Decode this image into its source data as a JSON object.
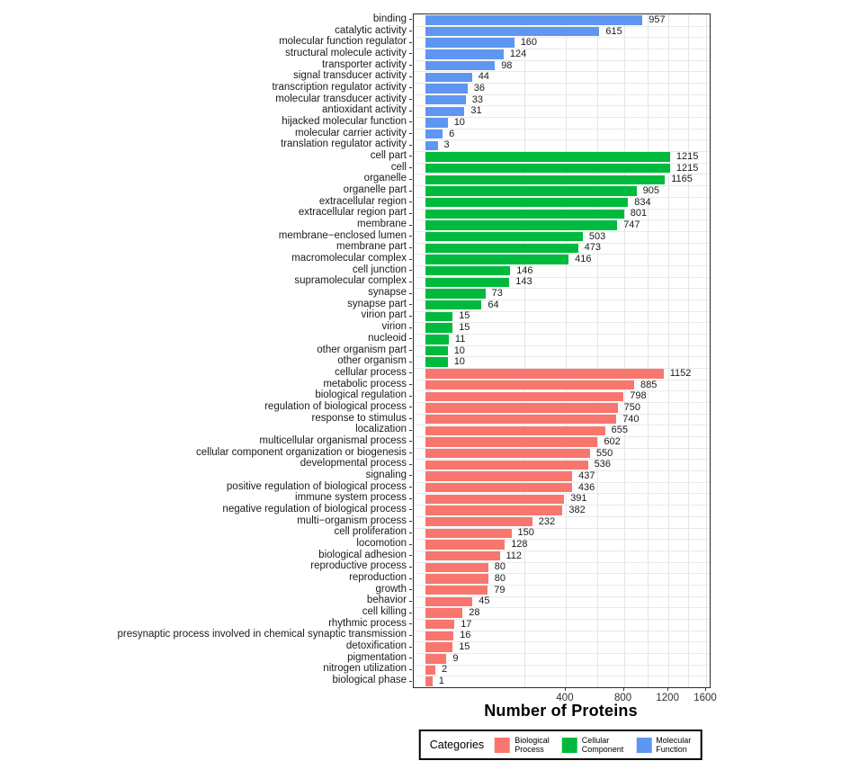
{
  "chart_data": {
    "type": "bar",
    "orientation": "horizontal",
    "x_scale": "sqrt",
    "xlabel": "Number of Proteins",
    "ylabel": "",
    "x_ticks": [
      400,
      800,
      1200,
      1600
    ],
    "gridline_step": 200,
    "xlim": [
      0,
      1600
    ],
    "grid": "on",
    "legend_position": "bottom",
    "sections": [
      {
        "name": "Molecular Function",
        "color": "#5e96f2",
        "items": [
          {
            "label": "binding",
            "value": 957
          },
          {
            "label": "catalytic activity",
            "value": 615
          },
          {
            "label": "molecular function regulator",
            "value": 160
          },
          {
            "label": "structural molecule activity",
            "value": 124
          },
          {
            "label": "transporter activity",
            "value": 98
          },
          {
            "label": "signal transducer activity",
            "value": 44
          },
          {
            "label": "transcription regulator activity",
            "value": 36
          },
          {
            "label": "molecular transducer activity",
            "value": 33
          },
          {
            "label": "antioxidant activity",
            "value": 31
          },
          {
            "label": "hijacked molecular function",
            "value": 10
          },
          {
            "label": "molecular carrier activity",
            "value": 6
          },
          {
            "label": "translation regulator activity",
            "value": 3
          }
        ]
      },
      {
        "name": "Cellular Component",
        "color": "#00ba3d",
        "items": [
          {
            "label": "cell part",
            "value": 1215
          },
          {
            "label": "cell",
            "value": 1215
          },
          {
            "label": "organelle",
            "value": 1165
          },
          {
            "label": "organelle part",
            "value": 905
          },
          {
            "label": "extracellular region",
            "value": 834
          },
          {
            "label": "extracellular region part",
            "value": 801
          },
          {
            "label": "membrane",
            "value": 747
          },
          {
            "label": "membrane−enclosed lumen",
            "value": 503
          },
          {
            "label": "membrane part",
            "value": 473
          },
          {
            "label": "macromolecular complex",
            "value": 416
          },
          {
            "label": "cell junction",
            "value": 146
          },
          {
            "label": "supramolecular complex",
            "value": 143
          },
          {
            "label": "synapse",
            "value": 73
          },
          {
            "label": "synapse part",
            "value": 64
          },
          {
            "label": "virion part",
            "value": 15
          },
          {
            "label": "virion",
            "value": 15
          },
          {
            "label": "nucleoid",
            "value": 11
          },
          {
            "label": "other organism part",
            "value": 10
          },
          {
            "label": "other organism",
            "value": 10
          }
        ]
      },
      {
        "name": "Biological Process",
        "color": "#f8766d",
        "items": [
          {
            "label": "cellular process",
            "value": 1152
          },
          {
            "label": "metabolic process",
            "value": 885
          },
          {
            "label": "biological regulation",
            "value": 798
          },
          {
            "label": "regulation of biological process",
            "value": 750
          },
          {
            "label": "response to stimulus",
            "value": 740
          },
          {
            "label": "localization",
            "value": 655
          },
          {
            "label": "multicellular organismal process",
            "value": 602
          },
          {
            "label": "cellular component organization or biogenesis",
            "value": 550
          },
          {
            "label": "developmental process",
            "value": 536
          },
          {
            "label": "signaling",
            "value": 437
          },
          {
            "label": "positive regulation of biological process",
            "value": 436
          },
          {
            "label": "immune system process",
            "value": 391
          },
          {
            "label": "negative regulation of biological process",
            "value": 382
          },
          {
            "label": "multi−organism process",
            "value": 232
          },
          {
            "label": "cell proliferation",
            "value": 150
          },
          {
            "label": "locomotion",
            "value": 128
          },
          {
            "label": "biological adhesion",
            "value": 112
          },
          {
            "label": "reproductive process",
            "value": 80
          },
          {
            "label": "reproduction",
            "value": 80
          },
          {
            "label": "growth",
            "value": 79
          },
          {
            "label": "behavior",
            "value": 45
          },
          {
            "label": "cell killing",
            "value": 28
          },
          {
            "label": "rhythmic process",
            "value": 17
          },
          {
            "label": "presynaptic process involved in chemical synaptic transmission",
            "value": 16
          },
          {
            "label": "detoxification",
            "value": 15
          },
          {
            "label": "pigmentation",
            "value": 9
          },
          {
            "label": "nitrogen utilization",
            "value": 2
          },
          {
            "label": "biological phase",
            "value": 1
          }
        ]
      }
    ],
    "legend": {
      "title": "Categories",
      "entries": [
        {
          "label_lines": [
            "Biological",
            "Process"
          ],
          "color": "#f8766d"
        },
        {
          "label_lines": [
            "Cellular",
            "Component"
          ],
          "color": "#00ba3d"
        },
        {
          "label_lines": [
            "Molecular",
            "Function"
          ],
          "color": "#5e96f2"
        }
      ]
    }
  }
}
